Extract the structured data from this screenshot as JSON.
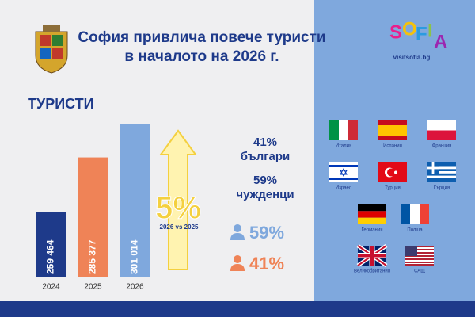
{
  "header": {
    "title_lines": [
      "София привлича повече туристи",
      "в началото на 2026 г."
    ],
    "logo_letters": [
      "S",
      "O",
      "F",
      "I",
      "A"
    ],
    "logo_url": "visitsofia.bg"
  },
  "chart_data": {
    "type": "bar",
    "title": "ТУРИСТИ",
    "categories": [
      "2024",
      "2025",
      "2026"
    ],
    "values": [
      259464,
      285377,
      301014
    ],
    "value_labels": [
      "259 464",
      "285 377",
      "301 014"
    ],
    "colors": [
      "#1e3a8a",
      "#ef8357",
      "#7fa8dd"
    ],
    "ylim": [
      228700,
      307300
    ]
  },
  "growth": {
    "value": "5%",
    "label": "2026 vs 2025"
  },
  "shares": {
    "bulgarians": {
      "value": "41%",
      "label": "българи"
    },
    "foreigners": {
      "value": "59%",
      "label": "чужденци"
    },
    "icon_foreigners": "59%",
    "icon_bulgarians": "41%"
  },
  "countries": [
    "Италия",
    "Испания",
    "Франция",
    "Израел",
    "Турция",
    "Гърция",
    "Германия",
    "Полша",
    "Великобритания",
    "САЩ"
  ]
}
